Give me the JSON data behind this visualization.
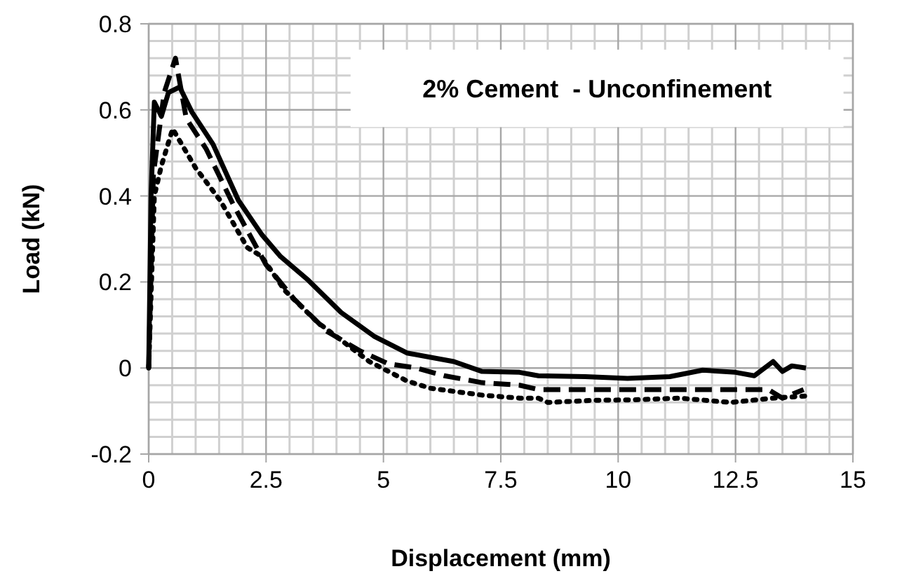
{
  "chart_data": {
    "type": "line",
    "title": "2% Cement  - Unconfinement",
    "xlabel": "Displacement (mm)",
    "ylabel": "Load (kN)",
    "xlim": [
      0,
      15
    ],
    "xticks": [
      0,
      2.5,
      5,
      7.5,
      10,
      12.5,
      15
    ],
    "ylim": [
      -0.2,
      0.8
    ],
    "yticks": [
      -0.2,
      0,
      0.2,
      0.4,
      0.6,
      0.8
    ],
    "grid": true,
    "series": [
      {
        "color": "#000000",
        "line_style": "solid",
        "x": [
          0,
          0.05,
          0.12,
          0.27,
          0.42,
          0.66,
          0.92,
          1.37,
          1.91,
          2.41,
          2.81,
          3.4,
          4.1,
          4.8,
          5.5,
          6.5,
          7.1,
          7.9,
          8.3,
          9.3,
          10.2,
          11.1,
          11.8,
          12.5,
          12.9,
          13.3,
          13.5,
          13.7,
          14.0
        ],
        "values": [
          0,
          0.4,
          0.618,
          0.585,
          0.64,
          0.653,
          0.595,
          0.52,
          0.39,
          0.31,
          0.259,
          0.204,
          0.129,
          0.074,
          0.035,
          0.015,
          -0.008,
          -0.01,
          -0.018,
          -0.02,
          -0.024,
          -0.02,
          -0.005,
          -0.01,
          -0.018,
          0.015,
          -0.008,
          0.005,
          0
        ]
      },
      {
        "color": "#000000",
        "line_style": "dashed",
        "x": [
          0,
          0.1,
          0.33,
          0.57,
          0.8,
          1.22,
          1.8,
          2.5,
          3.1,
          3.8,
          4.5,
          5.1,
          5.7,
          6.3,
          7.1,
          7.9,
          8.3,
          9.3,
          10.3,
          11.3,
          12.3,
          13.2,
          13.5,
          13.95
        ],
        "values": [
          0,
          0.45,
          0.64,
          0.72,
          0.58,
          0.51,
          0.38,
          0.24,
          0.16,
          0.085,
          0.04,
          0.01,
          0,
          -0.018,
          -0.034,
          -0.04,
          -0.05,
          -0.05,
          -0.05,
          -0.05,
          -0.05,
          -0.05,
          -0.07,
          -0.05
        ]
      },
      {
        "color": "#000000",
        "line_style": "dotted",
        "x": [
          0,
          0.12,
          0.27,
          0.51,
          1.0,
          1.52,
          2.1,
          2.4,
          2.9,
          3.6,
          4.7,
          5.5,
          6.0,
          7.1,
          7.9,
          8.3,
          8.5,
          9.5,
          10.3,
          11.3,
          12.4,
          13.3,
          14.0
        ],
        "values": [
          0,
          0.4,
          0.47,
          0.556,
          0.465,
          0.39,
          0.28,
          0.26,
          0.18,
          0.106,
          0.015,
          -0.03,
          -0.047,
          -0.063,
          -0.07,
          -0.07,
          -0.08,
          -0.075,
          -0.074,
          -0.07,
          -0.08,
          -0.07,
          -0.065
        ]
      }
    ]
  }
}
